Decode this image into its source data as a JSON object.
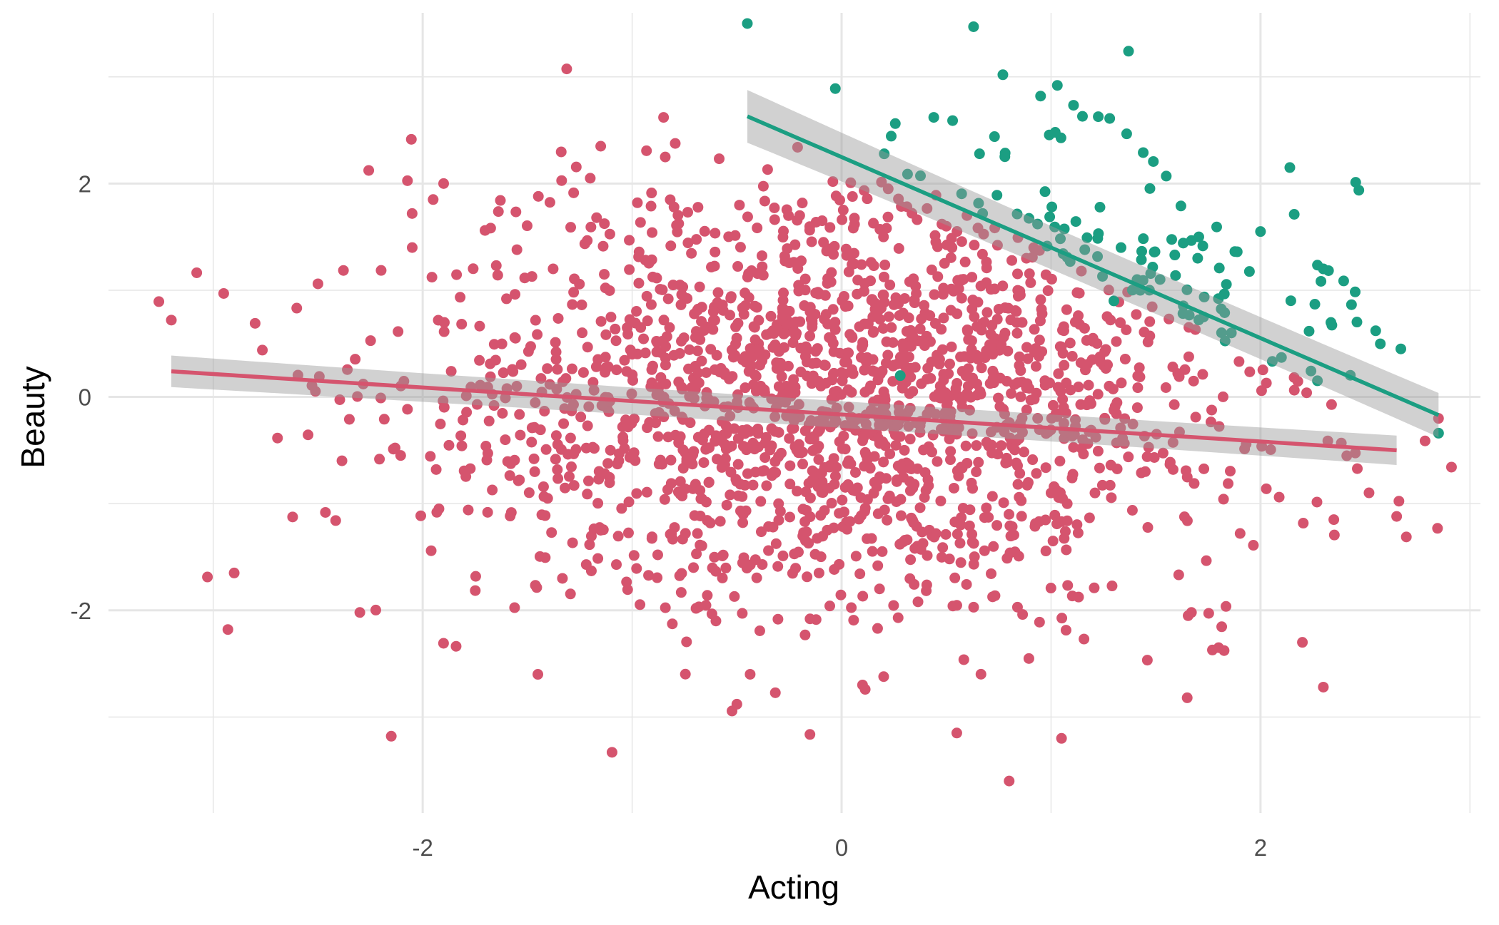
{
  "chart_data": {
    "type": "scatter",
    "title": "",
    "xlabel": "Acting",
    "ylabel": "Beauty",
    "xlim": [
      -3.5,
      3.05
    ],
    "ylim": [
      -3.9,
      3.6
    ],
    "x_ticks": [
      -2,
      0,
      2
    ],
    "x_tick_labels": [
      "-2",
      "0",
      "2"
    ],
    "y_ticks": [
      -2,
      0,
      2
    ],
    "y_tick_labels": [
      "-2",
      "0",
      "2"
    ],
    "x_minor_gridlines": [
      -3,
      -1,
      1,
      3
    ],
    "y_minor_gridlines": [
      -3,
      -1,
      1,
      3
    ],
    "grid": true,
    "legend": "none",
    "colors": {
      "pink": "#d5546e",
      "green": "#1b9e82",
      "grid": "#e6e6e6",
      "ci_band": "#999999",
      "tick_text": "#4d4d4d"
    },
    "series": [
      {
        "color": "pink",
        "n_points_approx": 1800,
        "points": [
          [
            -3.2,
            0.72
          ],
          [
            -2.95,
            0.97
          ],
          [
            -2.8,
            0.69
          ],
          [
            -2.9,
            -1.65
          ],
          [
            -2.93,
            -2.18
          ],
          [
            -2.5,
            1.06
          ],
          [
            -2.35,
            -0.21
          ],
          [
            -2.2,
            -0.01
          ],
          [
            -2.3,
            -2.02
          ],
          [
            -2.05,
            1.4
          ],
          [
            -2.15,
            -3.18
          ],
          [
            -1.95,
            1.85
          ],
          [
            -1.9,
            2.0
          ],
          [
            -1.55,
            1.38
          ],
          [
            -1.45,
            -2.6
          ],
          [
            -1.2,
            2.05
          ],
          [
            -1.15,
            2.35
          ],
          [
            -0.85,
            2.62
          ],
          [
            -0.8,
            1.78
          ],
          [
            -0.5,
            -2.88
          ],
          [
            -0.6,
            -2.1
          ],
          [
            0.1,
            -2.7
          ],
          [
            0.55,
            -3.15
          ],
          [
            0.8,
            -3.6
          ],
          [
            1.05,
            -3.2
          ],
          [
            1.65,
            -2.82
          ],
          [
            1.8,
            -2.35
          ],
          [
            2.3,
            -2.72
          ],
          [
            2.35,
            -1.15
          ],
          [
            2.65,
            -1.12
          ],
          [
            2.2,
            -2.3
          ],
          [
            1.45,
            -0.7
          ],
          [
            1.2,
            0.55
          ],
          [
            0.5,
            1.6
          ],
          [
            0.2,
            1.5
          ],
          [
            -0.2,
            1.7
          ],
          [
            -0.4,
            -0.3
          ],
          [
            0.3,
            -0.5
          ],
          [
            -1.0,
            0.4
          ],
          [
            1.0,
            -0.9
          ]
        ]
      },
      {
        "color": "green",
        "n_points_approx": 220,
        "points": [
          [
            -0.45,
            3.5
          ],
          [
            0.63,
            3.47
          ],
          [
            0.77,
            3.02
          ],
          [
            0.95,
            2.82
          ],
          [
            1.03,
            2.92
          ],
          [
            -0.03,
            2.89
          ],
          [
            0.44,
            2.62
          ],
          [
            0.53,
            2.59
          ],
          [
            1.28,
            2.61
          ],
          [
            1.15,
            2.63
          ],
          [
            1.02,
            2.48
          ],
          [
            0.73,
            2.44
          ],
          [
            1.44,
            2.29
          ],
          [
            2.14,
            2.15
          ],
          [
            1.55,
            2.07
          ],
          [
            1.62,
            1.79
          ],
          [
            2.0,
            1.55
          ],
          [
            2.1,
            0.37
          ],
          [
            2.55,
            0.62
          ],
          [
            2.67,
            0.45
          ],
          [
            2.85,
            -0.34
          ],
          [
            2.3,
            1.2
          ],
          [
            1.7,
            1.3
          ],
          [
            0.28,
            0.2
          ],
          [
            1.3,
            0.9
          ]
        ]
      }
    ],
    "fits": [
      {
        "color": "pink",
        "x_range": [
          -3.2,
          2.65
        ],
        "y_range": [
          0.24,
          -0.5
        ],
        "ci_halfwidth_ends": [
          0.13,
          0.12
        ]
      },
      {
        "color": "green",
        "x_range": [
          -0.45,
          2.85
        ],
        "y_range": [
          2.63,
          -0.17
        ],
        "ci_halfwidth_ends": [
          0.22,
          0.18
        ]
      }
    ]
  }
}
